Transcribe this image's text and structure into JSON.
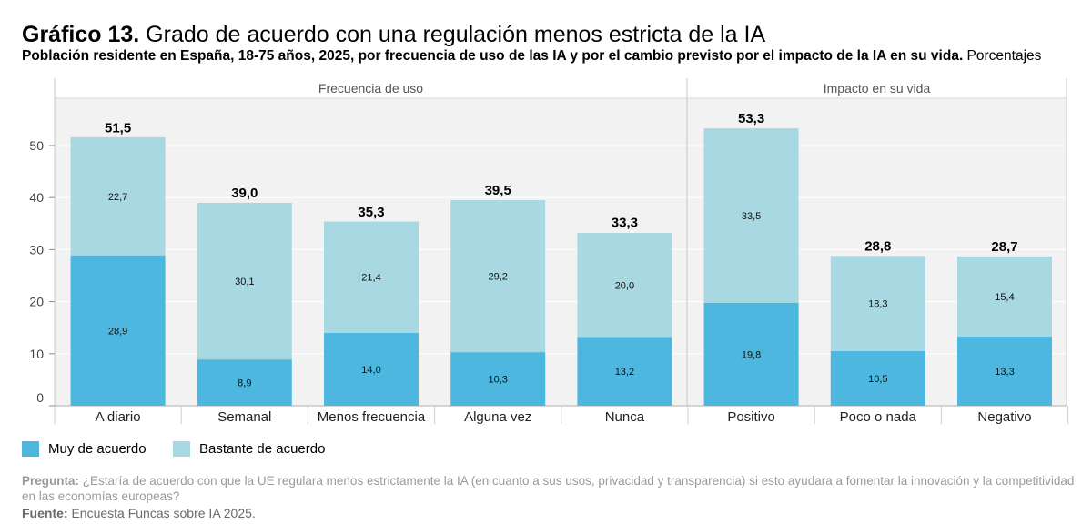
{
  "header": {
    "title_bold": "Gráfico 13.",
    "title_rest": " Grado de acuerdo con una regulación menos estricta de la IA",
    "subtitle_bold": "Población residente en España, 18-75 años, 2025, por frecuencia de uso de las IA y por el cambio previsto por el impacto de la IA en su vida.",
    "subtitle_rest": " Porcentajes"
  },
  "colors": {
    "muy": "#4db7e0",
    "bastante": "#a8d8e2",
    "panel": "#f2f2f2",
    "grid": "#ffffff"
  },
  "legend": [
    {
      "label": "Muy de acuerdo",
      "color": "#4db7e0"
    },
    {
      "label": "Bastante de acuerdo",
      "color": "#a8d8e2"
    }
  ],
  "chart_data": {
    "type": "bar",
    "stacked": true,
    "ylim": [
      0,
      60
    ],
    "yticks": [
      0,
      10,
      20,
      30,
      40,
      50
    ],
    "grid": true,
    "legend_position": "bottom-left",
    "panels": [
      {
        "name": "Frecuencia de uso",
        "categories": [
          "A diario",
          "Semanal",
          "Menos frecuencia",
          "Alguna vez",
          "Nunca"
        ],
        "muy": [
          28.9,
          8.9,
          14.0,
          10.3,
          13.2
        ],
        "bastante": [
          22.7,
          30.1,
          21.4,
          29.2,
          20.0
        ],
        "totals": [
          51.5,
          39.0,
          35.3,
          39.5,
          33.3
        ],
        "muy_labels": [
          "28,9",
          "8,9",
          "14,0",
          "10,3",
          "13,2"
        ],
        "bastante_labels": [
          "22,7",
          "30,1",
          "21,4",
          "29,2",
          "20,0"
        ],
        "total_labels": [
          "51,5",
          "39,0",
          "35,3",
          "39,5",
          "33,3"
        ]
      },
      {
        "name": "Impacto en su vida",
        "categories": [
          "Positivo",
          "Poco o nada",
          "Negativo"
        ],
        "muy": [
          19.8,
          10.5,
          13.3
        ],
        "bastante": [
          33.5,
          18.3,
          15.4
        ],
        "totals": [
          53.3,
          28.8,
          28.7
        ],
        "muy_labels": [
          "19,8",
          "10,5",
          "13,3"
        ],
        "bastante_labels": [
          "33,5",
          "18,3",
          "15,4"
        ],
        "total_labels": [
          "53,3",
          "28,8",
          "28,7"
        ]
      }
    ]
  },
  "footer": {
    "question_label": "Pregunta:",
    "question_text": " ¿Estaría de acuerdo con que la UE regulara menos estrictamente la IA (en cuanto a sus usos, privacidad y transparencia) si esto ayudara a fomentar la innovación y la competitividad",
    "question_text_2": "en las economías europeas?",
    "source_label": "Fuente:",
    "source_text": " Encuesta Funcas sobre IA 2025."
  }
}
